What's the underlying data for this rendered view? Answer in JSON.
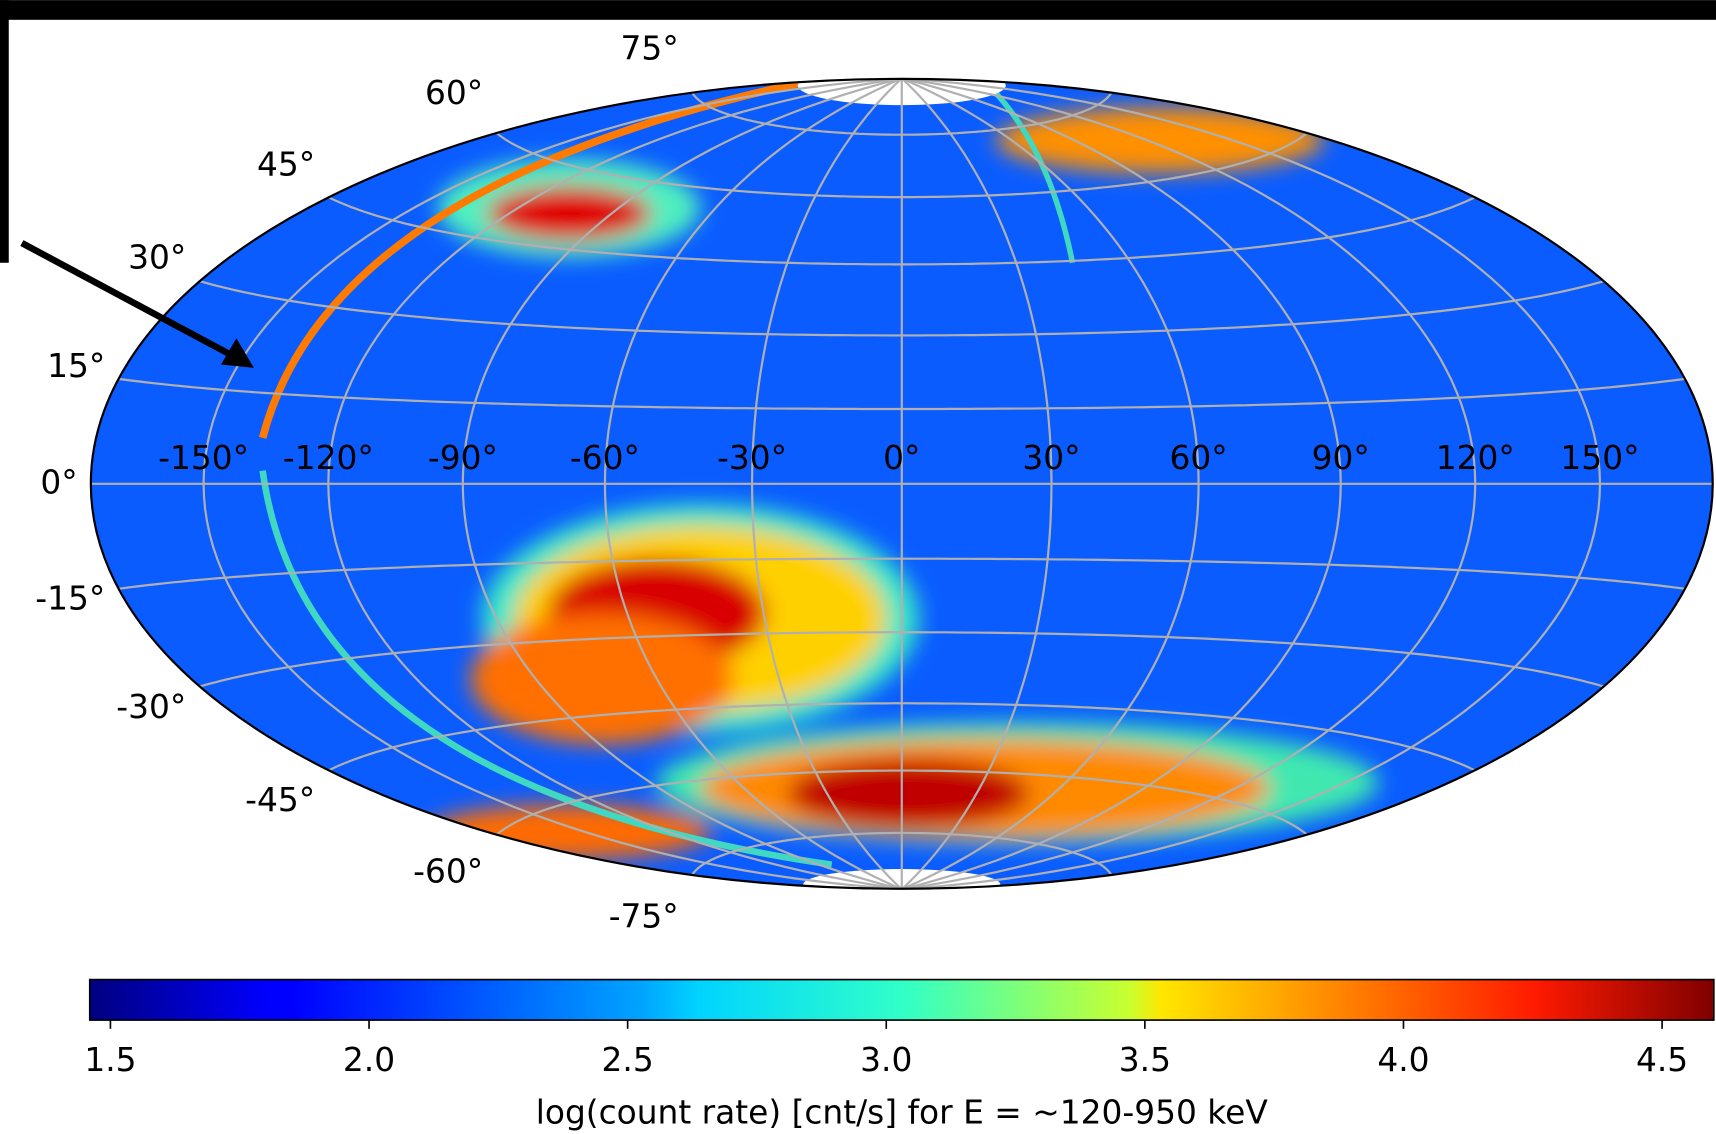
{
  "chart_data": {
    "type": "map",
    "projection": "hammer",
    "xlim": [
      -180,
      180
    ],
    "ylim": [
      -90,
      90
    ],
    "xticks": [
      {
        "value": -150,
        "label": "-150°"
      },
      {
        "value": -120,
        "label": "-120°"
      },
      {
        "value": -90,
        "label": "-90°"
      },
      {
        "value": -60,
        "label": "-60°"
      },
      {
        "value": -30,
        "label": "-30°"
      },
      {
        "value": 0,
        "label": "0°"
      },
      {
        "value": 30,
        "label": "30°"
      },
      {
        "value": 60,
        "label": "60°"
      },
      {
        "value": 90,
        "label": "90°"
      },
      {
        "value": 120,
        "label": "120°"
      },
      {
        "value": 150,
        "label": "150°"
      }
    ],
    "yticks": [
      {
        "value": -75,
        "label": "-75°"
      },
      {
        "value": -60,
        "label": "-60°"
      },
      {
        "value": -45,
        "label": "-45°"
      },
      {
        "value": -30,
        "label": "-30°"
      },
      {
        "value": -15,
        "label": "-15°"
      },
      {
        "value": 0,
        "label": "0°"
      },
      {
        "value": 15,
        "label": "15°"
      },
      {
        "value": 30,
        "label": "30°"
      },
      {
        "value": 45,
        "label": "45°"
      },
      {
        "value": 60,
        "label": "60°"
      },
      {
        "value": 75,
        "label": "75°"
      }
    ],
    "grid": true,
    "colorbar": {
      "label": "log(count rate) [cnt/s] for E = ~120-950 keV",
      "colormap": "jet",
      "lim": [
        1.46,
        4.6
      ],
      "ticks": [
        1.5,
        {
          "value": 2,
          "label": "2.0"
        },
        2.5,
        {
          "value": 3,
          "label": "3.0"
        },
        3.5,
        {
          "value": 4,
          "label": "4.0"
        },
        4.5
      ]
    }
  }
}
